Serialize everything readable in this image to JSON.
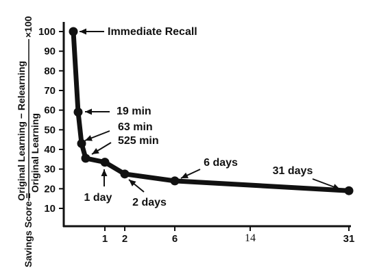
{
  "chart_data": {
    "type": "line",
    "title": "",
    "xlabel": "",
    "ylabel": {
      "prefix": "Savings Score =",
      "numerator": "Original Learning − Relearning",
      "denominator": "Original Learning",
      "multiplier": "×100"
    },
    "ylim": [
      5,
      105
    ],
    "y_ticks": [
      "10",
      "20",
      "30",
      "40",
      "50",
      "60",
      "70",
      "80",
      "90",
      "100"
    ],
    "x_ticks": [
      {
        "label": "1",
        "value": 1
      },
      {
        "label": "2",
        "value": 2
      },
      {
        "label": "6",
        "value": 6
      },
      {
        "label": "14",
        "value": 14
      },
      {
        "label": "31",
        "value": 31
      }
    ],
    "x_unit": "days",
    "points": [
      {
        "label": "Immediate Recall",
        "x_days": 0,
        "y": 100
      },
      {
        "label": "19 min",
        "x_days": 0.0132,
        "y": 59
      },
      {
        "label": "63 min",
        "x_days": 0.0438,
        "y": 43
      },
      {
        "label": "525 min",
        "x_days": 0.3646,
        "y": 35.5
      },
      {
        "label": "1 day",
        "x_days": 1,
        "y": 33.5
      },
      {
        "label": "2 days",
        "x_days": 2,
        "y": 27.5
      },
      {
        "label": "6 days",
        "x_days": 6,
        "y": 24
      },
      {
        "label": "31 days",
        "x_days": 31,
        "y": 19
      }
    ],
    "grid": false,
    "legend": "none"
  }
}
